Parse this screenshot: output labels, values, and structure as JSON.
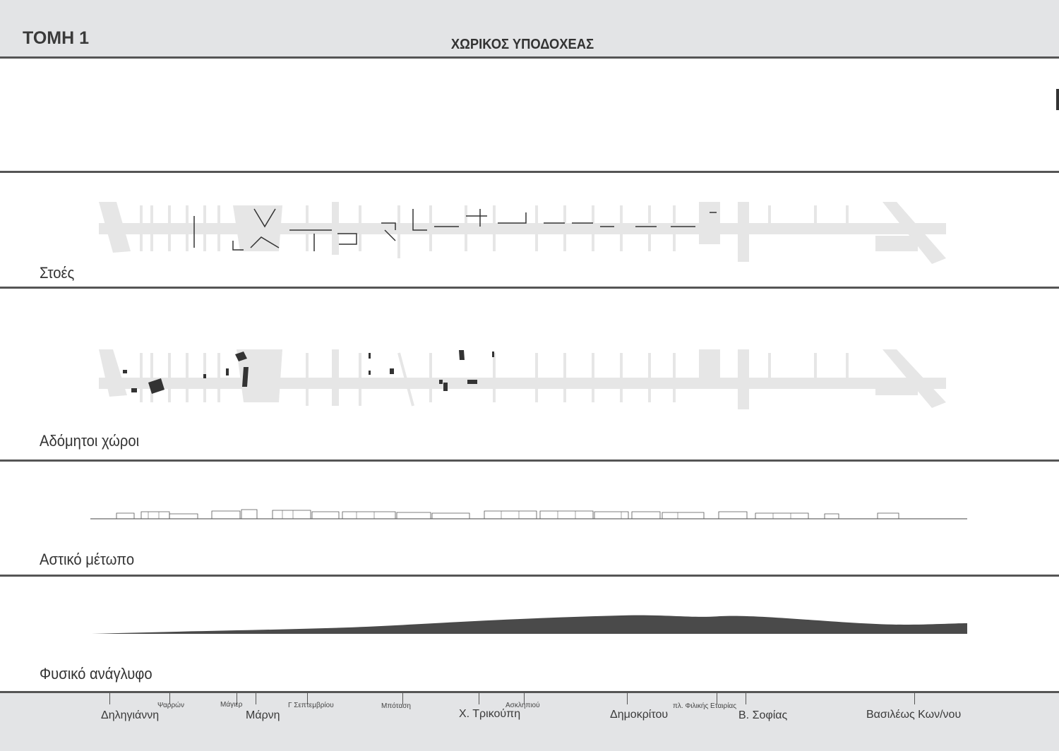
{
  "header": {
    "title": "ΤΟΜΗ 1",
    "subtitle": "ΧΩΡΙΚΟΣ ΥΠΟΔΟΧΕΑΣ"
  },
  "rows": [
    {
      "label": "Στοές"
    },
    {
      "label": "Αδόμητοι χώροι"
    },
    {
      "label": "Αστικό μέτωπο"
    },
    {
      "label": "Φυσικό ανάγλυφο"
    }
  ],
  "streets": {
    "main": [
      "Δηληγιάννη",
      "Μάρνη",
      "Χ. Τρικούπη",
      "Δημοκρίτου",
      "Β. Σοφίας",
      "Βασιλέως Κων/νου"
    ],
    "minor": [
      "Ψαρρών",
      "Μάγιερ",
      "Γ Σεπτεμβρίου",
      "Μπόταση",
      "Ασκληπιού",
      "πλ. Φιλικής Εταιρίας"
    ]
  },
  "colors": {
    "band": "#e3e4e6",
    "street_grey": "#e6e6e6",
    "dark": "#3a3a3a",
    "separator": "#555555"
  }
}
